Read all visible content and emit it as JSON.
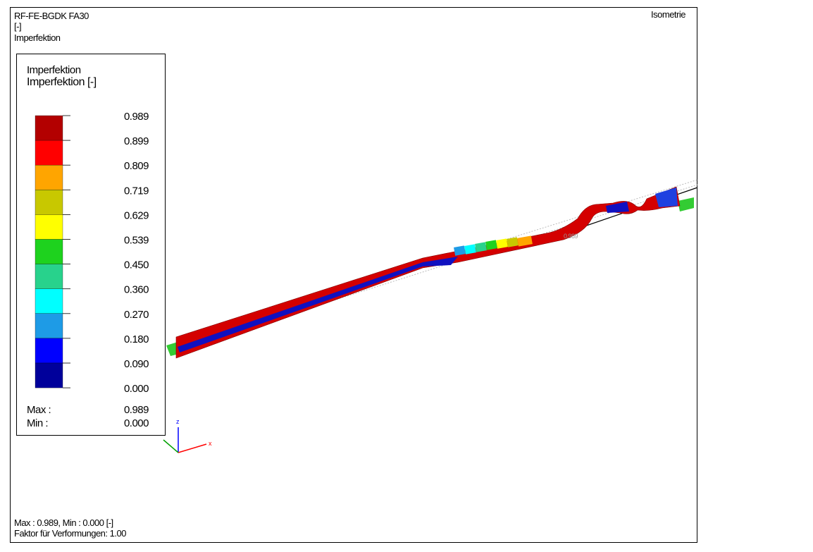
{
  "header": {
    "lines": [
      "RF-FE-BGDK FA30",
      "[-]",
      "Imperfektion"
    ],
    "view": "Isometrie"
  },
  "legend": {
    "title": "Imperfektion",
    "subtitle": "Imperfektion [-]",
    "values": [
      "0.989",
      "0.899",
      "0.809",
      "0.719",
      "0.629",
      "0.539",
      "0.450",
      "0.360",
      "0.270",
      "0.180",
      "0.090",
      "0.000"
    ],
    "colors": [
      "#b30000",
      "#ff0000",
      "#ffa500",
      "#c8c800",
      "#ffff00",
      "#1ed21e",
      "#28d28c",
      "#00ffff",
      "#1e9be6",
      "#0000ff",
      "#00009b"
    ],
    "max_label": "Max :",
    "max_value": "0.989",
    "min_label": "Min :",
    "min_value": "0.000"
  },
  "model": {
    "marker_label": "0.989",
    "axis_z": "z",
    "axis_x": "x"
  },
  "footer": {
    "lines": [
      "Max : 0.989, Min : 0.000 [-]",
      "Faktor für Verformungen: 1.00"
    ]
  }
}
